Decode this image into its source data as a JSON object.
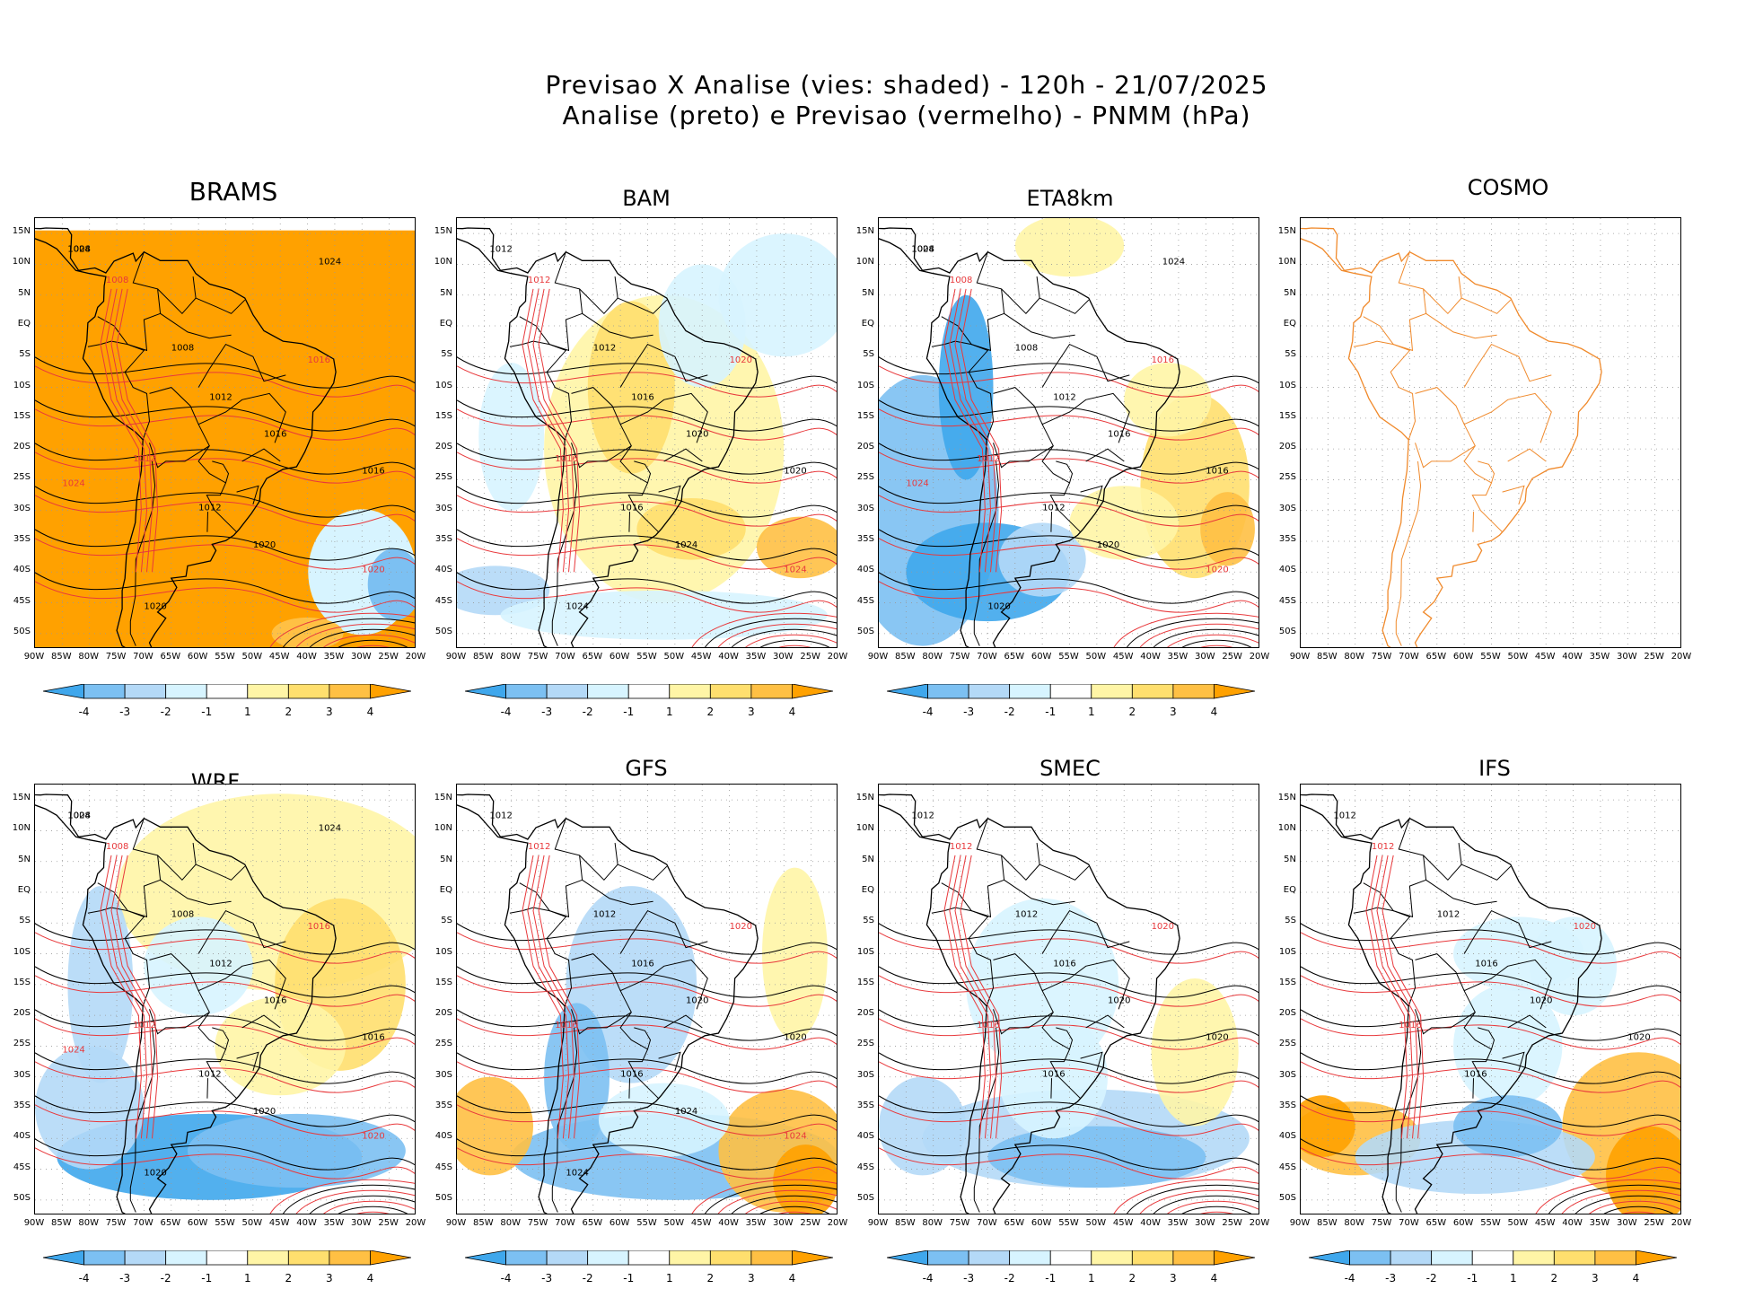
{
  "header": {
    "line1": "Previsao X Analise (vies: shaded) - 120h - 21/07/2025",
    "line2": "Analise (preto) e Previsao (vermelho) - PNMM (hPa)"
  },
  "axes": {
    "lat_labels": [
      "15N",
      "10N",
      "5N",
      "EQ",
      "5S",
      "10S",
      "15S",
      "20S",
      "25S",
      "30S",
      "35S",
      "40S",
      "45S",
      "50S"
    ],
    "lon_labels": [
      "90W",
      "85W",
      "80W",
      "75W",
      "70W",
      "65W",
      "60W",
      "55W",
      "50W",
      "45W",
      "40W",
      "35W",
      "30W",
      "25W",
      "20W"
    ]
  },
  "colorbar": {
    "labels": [
      "-4",
      "-3",
      "-2",
      "-1",
      "1",
      "2",
      "3",
      "4"
    ],
    "colors": [
      "#3fa7ec",
      "#7cc0f2",
      "#b4d9f7",
      "#d7f4ff",
      "#ffffff",
      "#fff5a6",
      "#ffdf6e",
      "#ffc044",
      "#ffa100"
    ]
  },
  "contours": {
    "analysis_color": "#000000",
    "forecast_color": "#e8393c"
  },
  "panels": [
    {
      "id": "brams",
      "title": "BRAMS",
      "labels": [
        "1008",
        "1012",
        "1016",
        "1020",
        "1024"
      ]
    },
    {
      "id": "bam",
      "title": "BAM",
      "labels": [
        "1012",
        "1016",
        "1020",
        "1024"
      ]
    },
    {
      "id": "eta8km",
      "title": "ETA8km",
      "labels": [
        "1008",
        "1012",
        "1016",
        "1020",
        "1024"
      ]
    },
    {
      "id": "cosmo",
      "title": "COSMO",
      "labels": []
    },
    {
      "id": "wrf",
      "title": "WRF",
      "labels": [
        "1008",
        "1012",
        "1016",
        "1020",
        "1024"
      ]
    },
    {
      "id": "gfs",
      "title": "GFS",
      "labels": [
        "1012",
        "1016",
        "1020",
        "1024"
      ]
    },
    {
      "id": "smec",
      "title": "SMEC",
      "labels": [
        "1012",
        "1016",
        "1020"
      ]
    },
    {
      "id": "ifs",
      "title": "IFS",
      "labels": [
        "1012",
        "1016",
        "1020"
      ]
    }
  ]
}
